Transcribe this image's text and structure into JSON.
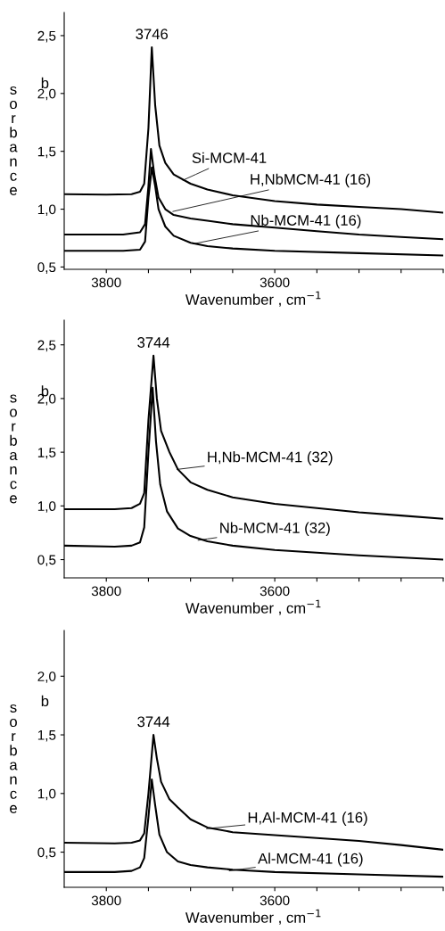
{
  "chart_data": [
    {
      "type": "line",
      "xlabel": "Wavenumber , cm$^{−1}$",
      "ylabel": "sorbance",
      "annotations": [
        "b",
        {
          "text": "3746",
          "x": 3746,
          "y": 2.4
        },
        {
          "text": "Si-MCM-41",
          "x": 3709,
          "y": 1.25
        },
        {
          "text": "H,NbMCM-41 (16)",
          "x": 3721,
          "y": 0.98
        },
        {
          "text": "Nb-MCM-41 (16)",
          "x": 3697,
          "y": 0.7
        }
      ],
      "xlim": [
        3850,
        3400
      ],
      "xticks": [
        3800,
        {
          "value": 3750,
          "label": null
        },
        {
          "value": 3700,
          "label": null
        },
        {
          "value": 3650,
          "label": null
        },
        3600,
        {
          "value": 3550,
          "label": null
        },
        {
          "value": 3500,
          "label": null
        },
        {
          "value": 3450,
          "label": null
        },
        {
          "value": 3400,
          "label": null
        }
      ],
      "ylim": [
        0.48,
        2.7
      ],
      "yticks": [
        {
          "value": 0.5,
          "label": "0,5"
        },
        {
          "value": 1.0,
          "label": "1,0"
        },
        {
          "value": 1.5,
          "label": "1,5"
        },
        {
          "value": 2.0,
          "label": "2,0"
        },
        {
          "value": 2.5,
          "label": "2,5"
        }
      ],
      "series": [
        {
          "color": "#000000",
          "x": [
            3850,
            3800,
            3770,
            3760,
            3755,
            3750,
            3746,
            3742,
            3737,
            3730,
            3720,
            3700,
            3680,
            3650,
            3600,
            3550,
            3500,
            3450,
            3400
          ],
          "values": [
            1.13,
            1.125,
            1.13,
            1.15,
            1.22,
            1.7,
            2.4,
            1.9,
            1.55,
            1.4,
            1.3,
            1.22,
            1.17,
            1.12,
            1.07,
            1.04,
            1.02,
            1.0,
            0.97
          ]
        },
        {
          "color": "#000000",
          "x": [
            3850,
            3780,
            3760,
            3754,
            3750,
            3747,
            3743,
            3738,
            3730,
            3720,
            3700,
            3680,
            3650,
            3600,
            3550,
            3500,
            3450,
            3400
          ],
          "values": [
            0.78,
            0.78,
            0.8,
            0.87,
            1.2,
            1.52,
            1.3,
            1.1,
            1.0,
            0.95,
            0.92,
            0.9,
            0.87,
            0.84,
            0.81,
            0.78,
            0.76,
            0.74
          ]
        },
        {
          "color": "#000000",
          "x": [
            3850,
            3780,
            3760,
            3754,
            3750,
            3746,
            3742,
            3738,
            3730,
            3720,
            3700,
            3680,
            3650,
            3600,
            3500,
            3400
          ],
          "values": [
            0.64,
            0.64,
            0.65,
            0.72,
            1.1,
            1.36,
            1.2,
            1.0,
            0.85,
            0.77,
            0.71,
            0.68,
            0.66,
            0.64,
            0.62,
            0.6
          ]
        }
      ]
    },
    {
      "type": "line",
      "xlabel": "Wavenumber , cm$^{−1}$",
      "ylabel": "sorbance",
      "annotations": [
        "b",
        {
          "text": "3744",
          "x": 3744,
          "y": 2.4
        },
        {
          "text": "H,Nb-MCM-41 (32)",
          "x": 3716,
          "y": 1.34
        },
        {
          "text": "Nb-MCM-41 (32)",
          "x": 3691,
          "y": 0.68
        }
      ],
      "xlim": [
        3850,
        3400
      ],
      "xticks": [
        3800,
        {
          "value": 3750,
          "label": null
        },
        {
          "value": 3700,
          "label": null
        },
        {
          "value": 3650,
          "label": null
        },
        3600,
        {
          "value": 3550,
          "label": null
        },
        {
          "value": 3500,
          "label": null
        },
        {
          "value": 3450,
          "label": null
        },
        {
          "value": 3400,
          "label": null
        }
      ],
      "ylim": [
        0.33,
        2.73
      ],
      "yticks": [
        {
          "value": 0.5,
          "label": "0,5"
        },
        {
          "value": 1.0,
          "label": "1,0"
        },
        {
          "value": 1.5,
          "label": "1,5"
        },
        {
          "value": 2.0,
          "label": "2,0"
        },
        {
          "value": 2.5,
          "label": "2,5"
        }
      ],
      "series": [
        {
          "color": "#000000",
          "x": [
            3850,
            3790,
            3770,
            3760,
            3755,
            3750,
            3744,
            3740,
            3735,
            3725,
            3715,
            3700,
            3680,
            3650,
            3600,
            3550,
            3500,
            3450,
            3400
          ],
          "values": [
            0.97,
            0.97,
            0.98,
            1.02,
            1.12,
            1.8,
            2.4,
            2.0,
            1.7,
            1.5,
            1.34,
            1.22,
            1.15,
            1.08,
            1.02,
            0.98,
            0.94,
            0.91,
            0.88
          ]
        },
        {
          "color": "#000000",
          "x": [
            3850,
            3790,
            3770,
            3760,
            3755,
            3750,
            3745,
            3741,
            3736,
            3728,
            3715,
            3700,
            3680,
            3650,
            3600,
            3500,
            3400
          ],
          "values": [
            0.63,
            0.62,
            0.63,
            0.66,
            0.8,
            1.5,
            2.1,
            1.6,
            1.2,
            0.95,
            0.79,
            0.72,
            0.67,
            0.63,
            0.59,
            0.54,
            0.5
          ]
        }
      ]
    },
    {
      "type": "line",
      "xlabel": "Wavenumber , cm$^{−1}$",
      "ylabel": "sorbance",
      "annotations": [
        "b",
        {
          "text": "3744",
          "x": 3744,
          "y": 1.5
        },
        {
          "text": "H,Al-MCM-41 (16)",
          "x": 3681,
          "y": 0.7
        },
        {
          "text": "Al-MCM-41 (16)",
          "x": 3654,
          "y": 0.34
        }
      ],
      "xlim": [
        3850,
        3400
      ],
      "xticks": [
        3800,
        {
          "value": 3750,
          "label": null
        },
        {
          "value": 3700,
          "label": null
        },
        {
          "value": 3650,
          "label": null
        },
        3600,
        {
          "value": 3550,
          "label": null
        },
        {
          "value": 3500,
          "label": null
        },
        {
          "value": 3450,
          "label": null
        },
        {
          "value": 3400,
          "label": null
        }
      ],
      "ylim": [
        0.2,
        2.39
      ],
      "yticks": [
        {
          "value": 0.5,
          "label": "0,5"
        },
        {
          "value": 1.0,
          "label": "1,0"
        },
        {
          "value": 1.5,
          "label": "1,5"
        },
        {
          "value": 2.0,
          "label": "2,0"
        }
      ],
      "series": [
        {
          "color": "#000000",
          "x": [
            3850,
            3790,
            3770,
            3760,
            3755,
            3750,
            3744,
            3740,
            3735,
            3725,
            3715,
            3700,
            3680,
            3650,
            3600,
            3550,
            3500,
            3450,
            3400
          ],
          "values": [
            0.58,
            0.575,
            0.58,
            0.6,
            0.66,
            1.0,
            1.5,
            1.3,
            1.1,
            0.95,
            0.88,
            0.78,
            0.71,
            0.67,
            0.645,
            0.62,
            0.595,
            0.56,
            0.52
          ]
        },
        {
          "color": "#000000",
          "x": [
            3850,
            3790,
            3770,
            3760,
            3755,
            3750,
            3746,
            3742,
            3737,
            3728,
            3715,
            3700,
            3680,
            3650,
            3600,
            3500,
            3400
          ],
          "values": [
            0.33,
            0.33,
            0.34,
            0.37,
            0.45,
            0.8,
            1.12,
            0.9,
            0.65,
            0.5,
            0.42,
            0.39,
            0.37,
            0.35,
            0.33,
            0.31,
            0.29
          ]
        }
      ]
    }
  ]
}
